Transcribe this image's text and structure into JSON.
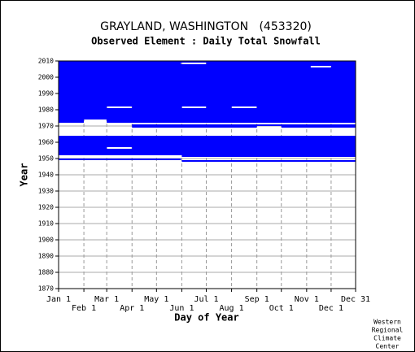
{
  "chart_data": {
    "type": "coverage",
    "title": "GRAYLAND, WASHINGTON   (453320)",
    "subtitle": "Observed Element : Daily Total Snowfall",
    "xlabel": "Day of Year",
    "ylabel": "Year",
    "credit": [
      "Western",
      "Regional",
      "Climate",
      "Center"
    ],
    "color": "#0000ff",
    "grid": true,
    "xlim": [
      1,
      365
    ],
    "xticks": [
      {
        "value": 1,
        "label": "Jan 1"
      },
      {
        "value": 32,
        "label": "Feb 1"
      },
      {
        "value": 60,
        "label": "Mar 1"
      },
      {
        "value": 91,
        "label": "Apr 1"
      },
      {
        "value": 121,
        "label": "May 1"
      },
      {
        "value": 152,
        "label": "Jun 1"
      },
      {
        "value": 182,
        "label": "Jul 1"
      },
      {
        "value": 213,
        "label": "Aug 1"
      },
      {
        "value": 244,
        "label": "Sep 1"
      },
      {
        "value": 274,
        "label": "Oct 1"
      },
      {
        "value": 305,
        "label": "Nov 1"
      },
      {
        "value": 335,
        "label": "Dec 1"
      },
      {
        "value": 365,
        "label": "Dec 31"
      }
    ],
    "ylim": [
      1870,
      2010
    ],
    "yticks": [
      1870,
      1880,
      1890,
      1900,
      1910,
      1920,
      1930,
      1940,
      1950,
      1960,
      1970,
      1980,
      1990,
      2000,
      2010
    ],
    "segments": [
      [
        2009,
        1,
        365
      ],
      [
        2008,
        1,
        151
      ],
      [
        2008,
        182,
        365
      ],
      [
        2007,
        1,
        365
      ],
      [
        2006,
        1,
        310
      ],
      [
        2006,
        335,
        365
      ],
      [
        2005,
        1,
        365
      ],
      [
        2004,
        1,
        365
      ],
      [
        2003,
        1,
        365
      ],
      [
        2002,
        1,
        365
      ],
      [
        2001,
        1,
        365
      ],
      [
        2000,
        1,
        365
      ],
      [
        1999,
        1,
        365
      ],
      [
        1998,
        1,
        365
      ],
      [
        1997,
        1,
        365
      ],
      [
        1996,
        1,
        365
      ],
      [
        1995,
        1,
        365
      ],
      [
        1994,
        1,
        365
      ],
      [
        1993,
        1,
        365
      ],
      [
        1992,
        1,
        365
      ],
      [
        1991,
        1,
        365
      ],
      [
        1990,
        1,
        365
      ],
      [
        1989,
        1,
        365
      ],
      [
        1988,
        1,
        365
      ],
      [
        1987,
        1,
        365
      ],
      [
        1986,
        1,
        365
      ],
      [
        1985,
        1,
        365
      ],
      [
        1984,
        1,
        365
      ],
      [
        1983,
        1,
        365
      ],
      [
        1982,
        1,
        365
      ],
      [
        1981,
        1,
        60
      ],
      [
        1981,
        91,
        152
      ],
      [
        1981,
        182,
        213
      ],
      [
        1981,
        244,
        365
      ],
      [
        1980,
        1,
        365
      ],
      [
        1979,
        1,
        365
      ],
      [
        1978,
        1,
        365
      ],
      [
        1977,
        1,
        365
      ],
      [
        1976,
        1,
        365
      ],
      [
        1975,
        1,
        365
      ],
      [
        1974,
        1,
        365
      ],
      [
        1973,
        1,
        32
      ],
      [
        1973,
        60,
        365
      ],
      [
        1972,
        1,
        32
      ],
      [
        1972,
        60,
        365
      ],
      [
        1970,
        91,
        365
      ],
      [
        1969,
        91,
        244
      ],
      [
        1969,
        274,
        365
      ],
      [
        1963,
        1,
        365
      ],
      [
        1962,
        1,
        365
      ],
      [
        1961,
        1,
        365
      ],
      [
        1960,
        1,
        365
      ],
      [
        1959,
        1,
        365
      ],
      [
        1958,
        1,
        365
      ],
      [
        1957,
        1,
        365
      ],
      [
        1956,
        1,
        60
      ],
      [
        1956,
        91,
        365
      ],
      [
        1955,
        1,
        365
      ],
      [
        1954,
        1,
        365
      ],
      [
        1953,
        1,
        365
      ],
      [
        1952,
        1,
        365
      ],
      [
        1951,
        152,
        365
      ],
      [
        1949,
        1,
        151
      ],
      [
        1948,
        152,
        365
      ]
    ]
  }
}
